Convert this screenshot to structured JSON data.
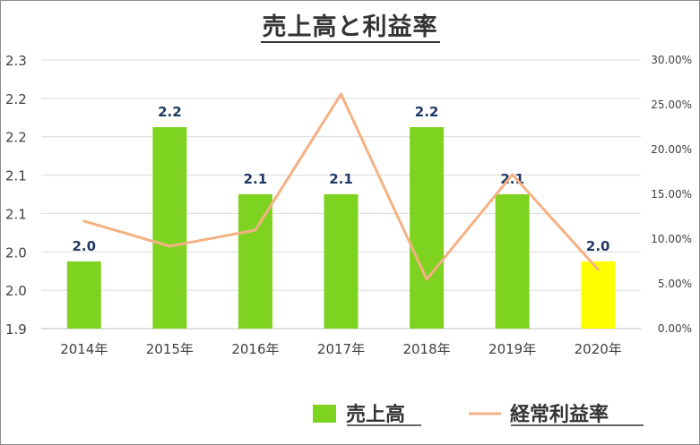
{
  "chart_data": {
    "type": "bar",
    "title": "売上高と利益率",
    "categories": [
      "2014年",
      "2015年",
      "2016年",
      "2017年",
      "2018年",
      "2019年",
      "2020年"
    ],
    "y_ticks": [
      "1.9",
      "2.0",
      "2.0",
      "2.1",
      "2.1",
      "2.2",
      "2.2",
      "2.3"
    ],
    "y2_ticks": [
      "0.00%",
      "5.00%",
      "10.00%",
      "15.00%",
      "20.00%",
      "25.00%",
      "30.00%"
    ],
    "ylim": [
      1.9,
      2.3
    ],
    "y2lim": [
      0,
      30
    ],
    "grid": true,
    "legend_position": "bottom-right",
    "series": [
      {
        "name": "売上高",
        "kind": "bar",
        "axis": "left",
        "values": [
          2.0,
          2.2,
          2.1,
          2.1,
          2.2,
          2.1,
          2.0
        ],
        "labels": [
          "2.0",
          "2.2",
          "2.1",
          "2.1",
          "2.2",
          "2.1",
          "2.0"
        ],
        "colors": [
          "#7ED321",
          "#7ED321",
          "#7ED321",
          "#7ED321",
          "#7ED321",
          "#7ED321",
          "#FFFF00"
        ]
      },
      {
        "name": "経常利益率",
        "kind": "line",
        "axis": "right",
        "unit": "%",
        "values": [
          12.0,
          9.2,
          11.0,
          26.2,
          5.5,
          17.2,
          6.6
        ],
        "color": "#F4B183"
      }
    ]
  }
}
